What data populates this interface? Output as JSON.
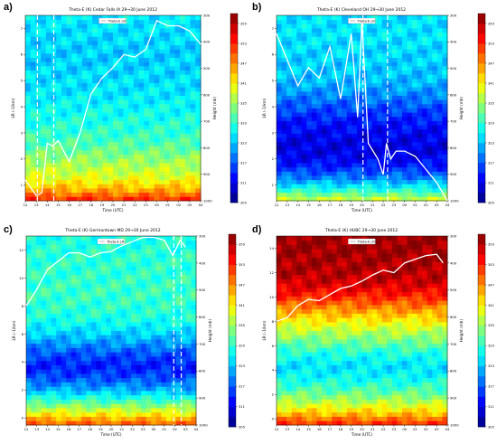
{
  "figure": {
    "panels": [
      {
        "panel_label": "a)",
        "title": "Theta-E (K) Cedar Falls IA 29→30 June 2012"
      },
      {
        "panel_label": "b)",
        "title": "Theta-E (K) Cleveland OH 29→30 June 2012"
      },
      {
        "panel_label": "c)",
        "title": "Theta-E (K) Germantown MD 29→30 June 2012"
      },
      {
        "panel_label": "d)",
        "title": "Theta-E (K) HUBC 29→30 June 2012"
      }
    ]
  },
  "chart_data": [
    {
      "type": "heatmap",
      "title": "Theta-E (K) Cedar Falls IA 29→30 June 2012",
      "xlabel": "Time (UTC)",
      "ylabel": "LR (-1/km)",
      "ylabel_right": "Height (mb)",
      "legend_label": "Theta-E LR",
      "legend_position": "top-center",
      "x_ticks": [
        "12",
        "13",
        "14",
        "15",
        "16",
        "17",
        "18",
        "19",
        "20",
        "21",
        "22",
        "23",
        "00",
        "01",
        "02",
        "03",
        "04"
      ],
      "y_ticks": [
        "1",
        "2",
        "3",
        "4",
        "5",
        "6",
        "7"
      ],
      "ylim": [
        0.4,
        7.5
      ],
      "right_ticks": [
        "1000",
        "900",
        "800",
        "700",
        "600",
        "500",
        "400",
        "300"
      ],
      "colorbar_ticks": [
        "305",
        "311",
        "317",
        "323",
        "329",
        "335",
        "341",
        "347",
        "353",
        "359"
      ],
      "colorbar_range": [
        305,
        362
      ],
      "band_pattern": [
        0.85,
        0.7,
        0.6,
        0.55,
        0.5,
        0.45,
        0.42,
        0.4,
        0.38,
        0.36,
        0.35,
        0.34,
        0.33,
        0.33,
        0.34,
        0.35,
        0.36
      ],
      "line": {
        "x": [
          12.0,
          13.0,
          13.5,
          14.0,
          14.5,
          15.0,
          16.0,
          17.0,
          18.0,
          19.0,
          20.0,
          21.0,
          22.0,
          23.0,
          24.0,
          25.0,
          26.0,
          27.0,
          28.0
        ],
        "y": [
          1.2,
          0.6,
          0.7,
          2.6,
          2.5,
          2.7,
          1.9,
          3.0,
          4.5,
          5.1,
          5.5,
          6.0,
          5.9,
          6.2,
          7.3,
          7.1,
          7.1,
          6.9,
          6.4
        ]
      },
      "dashed_lines_x": [
        13.1,
        14.6
      ],
      "grid": false
    },
    {
      "type": "heatmap",
      "title": "Theta-E (K) Cleveland OH 29→30 June 2012",
      "xlabel": "Time (UTC)",
      "ylabel": "LR (-1/km)",
      "ylabel_right": "Height (mb)",
      "legend_label": "Theta-E LR",
      "legend_position": "top-center",
      "x_ticks": [
        "12",
        "13",
        "14",
        "15",
        "16",
        "17",
        "18",
        "19",
        "20",
        "21",
        "22",
        "23",
        "00",
        "01",
        "02",
        "03",
        "04"
      ],
      "y_ticks": [
        "1",
        "2",
        "3",
        "4",
        "5",
        "6",
        "7"
      ],
      "ylim": [
        0.4,
        7.5
      ],
      "right_ticks": [
        "1000",
        "900",
        "800",
        "700",
        "600",
        "500",
        "400",
        "300"
      ],
      "colorbar_ticks": [
        "305",
        "311",
        "317",
        "323",
        "329",
        "335",
        "341",
        "347",
        "353",
        "359"
      ],
      "colorbar_range": [
        305,
        362
      ],
      "band_pattern": [
        0.6,
        0.4,
        0.25,
        0.15,
        0.1,
        0.1,
        0.12,
        0.15,
        0.2,
        0.25,
        0.3,
        0.32,
        0.33,
        0.34,
        0.35,
        0.35,
        0.35
      ],
      "line": {
        "x": [
          12.0,
          13.0,
          14.0,
          15.0,
          16.0,
          17.0,
          18.0,
          19.0,
          19.6,
          20.0,
          20.6,
          21.5,
          22.0,
          22.3,
          22.7,
          23.2,
          24.0,
          25.0,
          26.0,
          27.0,
          28.0
        ],
        "y": [
          6.8,
          5.8,
          4.8,
          5.5,
          5.1,
          6.3,
          4.3,
          6.8,
          3.6,
          7.3,
          2.6,
          2.0,
          1.4,
          2.6,
          2.0,
          2.3,
          2.3,
          2.1,
          1.6,
          1.1,
          0.4
        ]
      },
      "dashed_lines_x": [
        20.1,
        22.4
      ],
      "grid": false
    },
    {
      "type": "heatmap",
      "title": "Theta-E (K) Germantown MD 29→30 June 2012",
      "xlabel": "Time (UTC)",
      "ylabel": "LR (-1/km)",
      "ylabel_right": "Height (mb)",
      "legend_label": "Theta-E LR",
      "legend_position": "top-center",
      "x_ticks": [
        "12",
        "13",
        "14",
        "15",
        "16",
        "17",
        "18",
        "19",
        "20",
        "21",
        "22",
        "23",
        "00",
        "01",
        "02",
        "03",
        "04"
      ],
      "y_ticks": [
        "0",
        "2",
        "4",
        "6",
        "8",
        "10",
        "12"
      ],
      "ylim": [
        -0.5,
        13.0
      ],
      "right_ticks": [
        "1000",
        "900",
        "800",
        "700",
        "600",
        "500",
        "400",
        "300"
      ],
      "colorbar_ticks": [
        "305",
        "311",
        "317",
        "323",
        "329",
        "335",
        "341",
        "347",
        "353",
        "359"
      ],
      "colorbar_range": [
        305,
        362
      ],
      "band_pattern": [
        0.8,
        0.62,
        0.45,
        0.3,
        0.2,
        0.15,
        0.2,
        0.28,
        0.35,
        0.4,
        0.42,
        0.43,
        0.43,
        0.42,
        0.42,
        0.41,
        0.4
      ],
      "line": {
        "x": [
          12.0,
          13.0,
          14.0,
          15.0,
          16.0,
          17.0,
          18.0,
          19.0,
          20.0,
          21.0,
          22.0,
          23.0,
          24.0,
          25.0,
          25.8,
          26.5,
          27.0
        ],
        "y": [
          8.0,
          9.2,
          10.6,
          11.2,
          11.8,
          11.8,
          11.5,
          11.8,
          11.9,
          12.3,
          12.6,
          12.9,
          12.9,
          12.7,
          11.6,
          12.7,
          12.2
        ]
      },
      "dashed_lines_x": [
        25.9,
        26.6
      ],
      "grid": false
    },
    {
      "type": "heatmap",
      "title": "Theta-E (K) HUBC 29→30 June 2012",
      "xlabel": "Time (UTC)",
      "ylabel": "LR (-1/km)",
      "ylabel_right": "Height (mb)",
      "legend_label": "Theta-E LR",
      "legend_position": "top-center",
      "x_ticks": [
        "12",
        "13",
        "14",
        "15",
        "16",
        "17",
        "18",
        "19",
        "20",
        "21",
        "22",
        "23",
        "00",
        "01",
        "02",
        "03",
        "04"
      ],
      "y_ticks": [
        "0",
        "2",
        "4",
        "6",
        "8",
        "10",
        "12",
        "14"
      ],
      "ylim": [
        -0.5,
        15.0
      ],
      "right_ticks": [
        "1000",
        "900",
        "800",
        "700",
        "600",
        "500",
        "400",
        "300"
      ],
      "colorbar_ticks": [
        "305",
        "311",
        "317",
        "323",
        "329",
        "335",
        "341",
        "347",
        "353",
        "359"
      ],
      "colorbar_range": [
        305,
        362
      ],
      "band_pattern": [
        0.85,
        0.68,
        0.55,
        0.45,
        0.38,
        0.35,
        0.4,
        0.48,
        0.56,
        0.65,
        0.75,
        0.85,
        0.92,
        0.95,
        0.96,
        0.97,
        0.97
      ],
      "line": {
        "x": [
          12.0,
          13.0,
          14.0,
          15.0,
          16.0,
          17.0,
          18.0,
          19.0,
          20.0,
          21.0,
          22.0,
          23.0,
          24.0,
          25.0,
          26.0,
          27.0,
          27.6
        ],
        "y": [
          8.0,
          8.3,
          9.3,
          9.8,
          9.7,
          10.2,
          10.7,
          10.9,
          11.3,
          11.8,
          12.2,
          12.0,
          12.8,
          13.1,
          13.4,
          13.5,
          12.8
        ]
      },
      "dashed_lines_x": [],
      "grid": false
    }
  ]
}
